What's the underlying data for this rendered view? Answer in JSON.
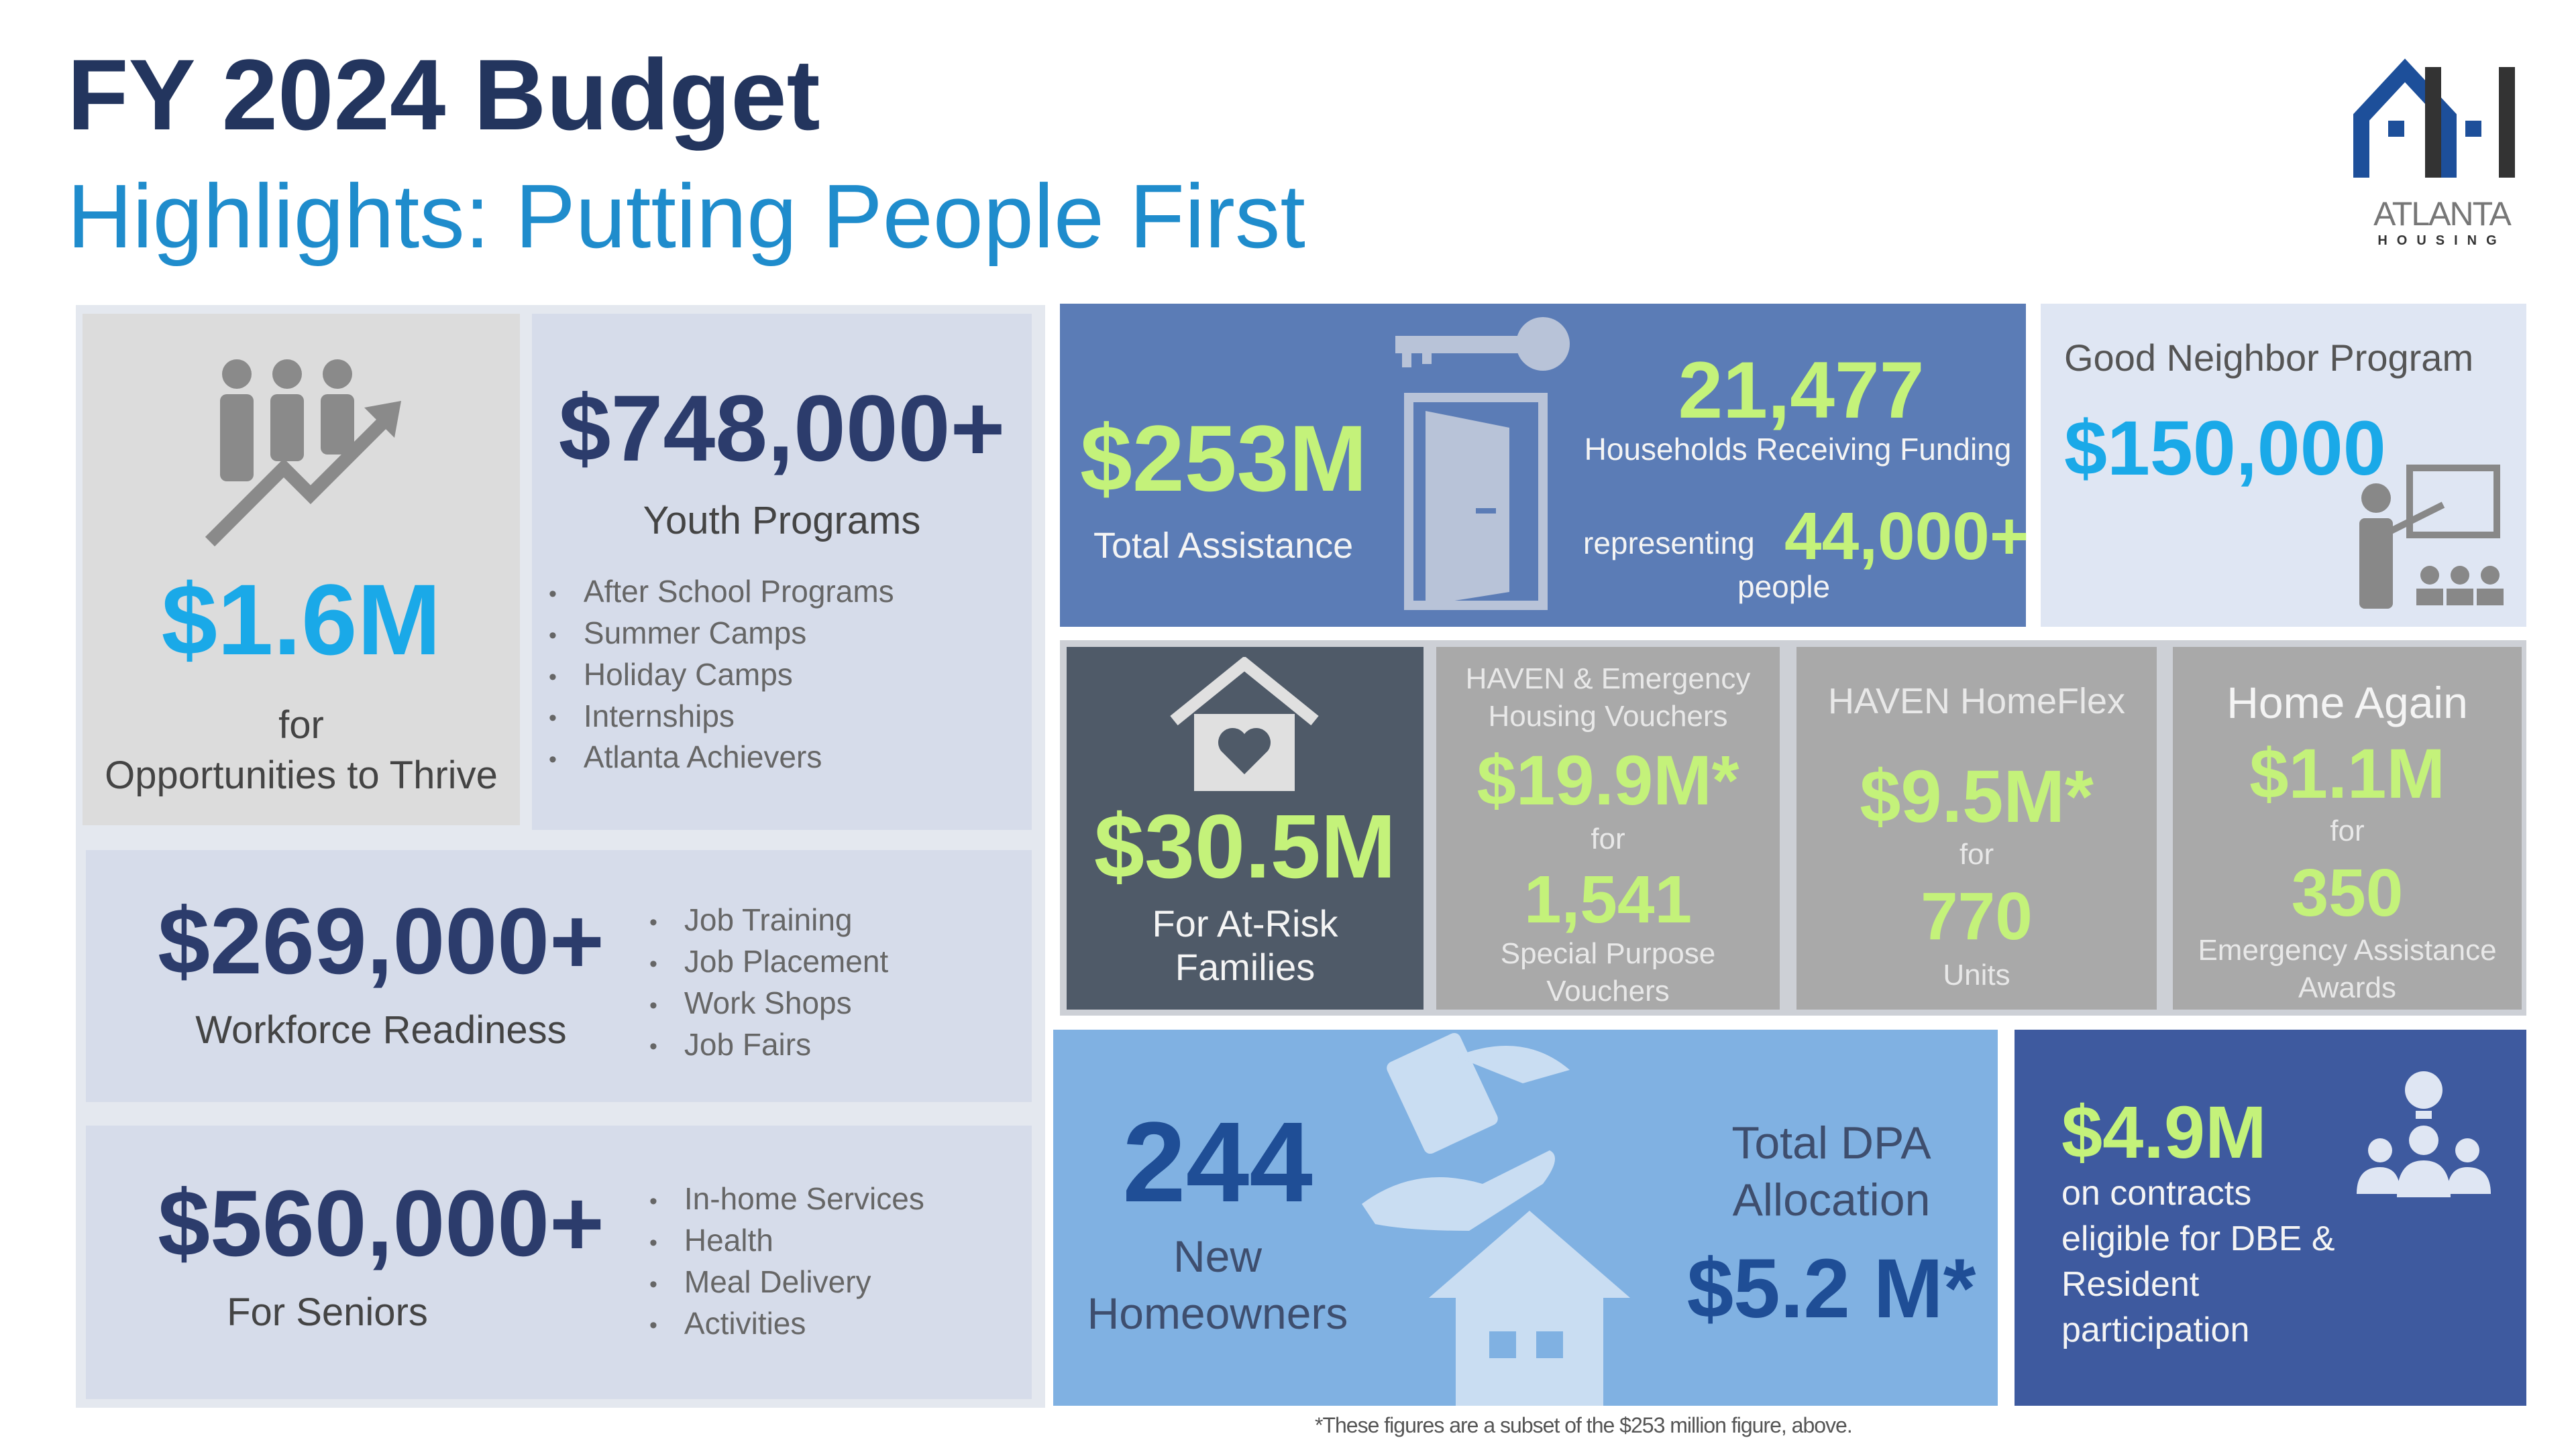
{
  "header": {
    "title": "FY 2024 Budget",
    "subtitle": "Highlights: Putting People First"
  },
  "logo": {
    "text": "ATLANTA",
    "subtext": "HOUSING"
  },
  "thrive": {
    "amount": "$1.6M",
    "label1": "for",
    "label2": "Opportunities to Thrive"
  },
  "youth": {
    "amount": "$748,000+",
    "label": "Youth Programs",
    "items": [
      "After School Programs",
      "Summer Camps",
      "Holiday Camps",
      "Internships",
      "Atlanta Achievers"
    ]
  },
  "workforce": {
    "amount": "$269,000+",
    "label": "Workforce Readiness",
    "items": [
      "Job Training",
      "Job Placement",
      "Work Shops",
      "Job Fairs"
    ]
  },
  "seniors": {
    "amount": "$560,000+",
    "label": "For Seniors",
    "items": [
      "In-home Services",
      "Health",
      "Meal Delivery",
      "Activities"
    ]
  },
  "assistance": {
    "amount": "$253M",
    "label": "Total Assistance",
    "households": "21,477",
    "households_label": "Households Receiving Funding",
    "representing": "representing",
    "people": "44,000+",
    "people_label": "people"
  },
  "good_neighbor": {
    "title": "Good Neighbor Program",
    "amount": "$150,000"
  },
  "at_risk": {
    "amount": "$30.5M",
    "label1": "For At-Risk",
    "label2": "Families"
  },
  "haven": {
    "title": "HAVEN & Emergency Housing Vouchers",
    "amount": "$19.9M*",
    "for": "for",
    "count": "1,541",
    "label": "Special Purpose Vouchers"
  },
  "homeflex": {
    "title": "HAVEN HomeFlex",
    "amount": "$9.5M*",
    "for": "for",
    "count": "770",
    "label": "Units"
  },
  "home_again": {
    "title": "Home Again",
    "amount": "$1.1M",
    "for": "for",
    "count": "350",
    "label": "Emergency Assistance Awards"
  },
  "homeowners": {
    "count": "244",
    "label1": "New",
    "label2": "Homeowners",
    "dpa1": "Total DPA",
    "dpa2": "Allocation",
    "dpa_amount": "$5.2 M*"
  },
  "contracts": {
    "amount": "$4.9M",
    "label": "on contracts eligible for DBE & Resident participation"
  },
  "footnote": "*These figures are a subset of the $253 million figure, above.",
  "colors": {
    "navy": "#2c3c6c",
    "cyan": "#1aa9e8",
    "green": "#c4f27a",
    "assist_bg": "#5b7cb6",
    "dark_bg": "#4f5a68",
    "dpa_bg": "#80b1e2",
    "contracts_bg": "#3e5a9f"
  }
}
